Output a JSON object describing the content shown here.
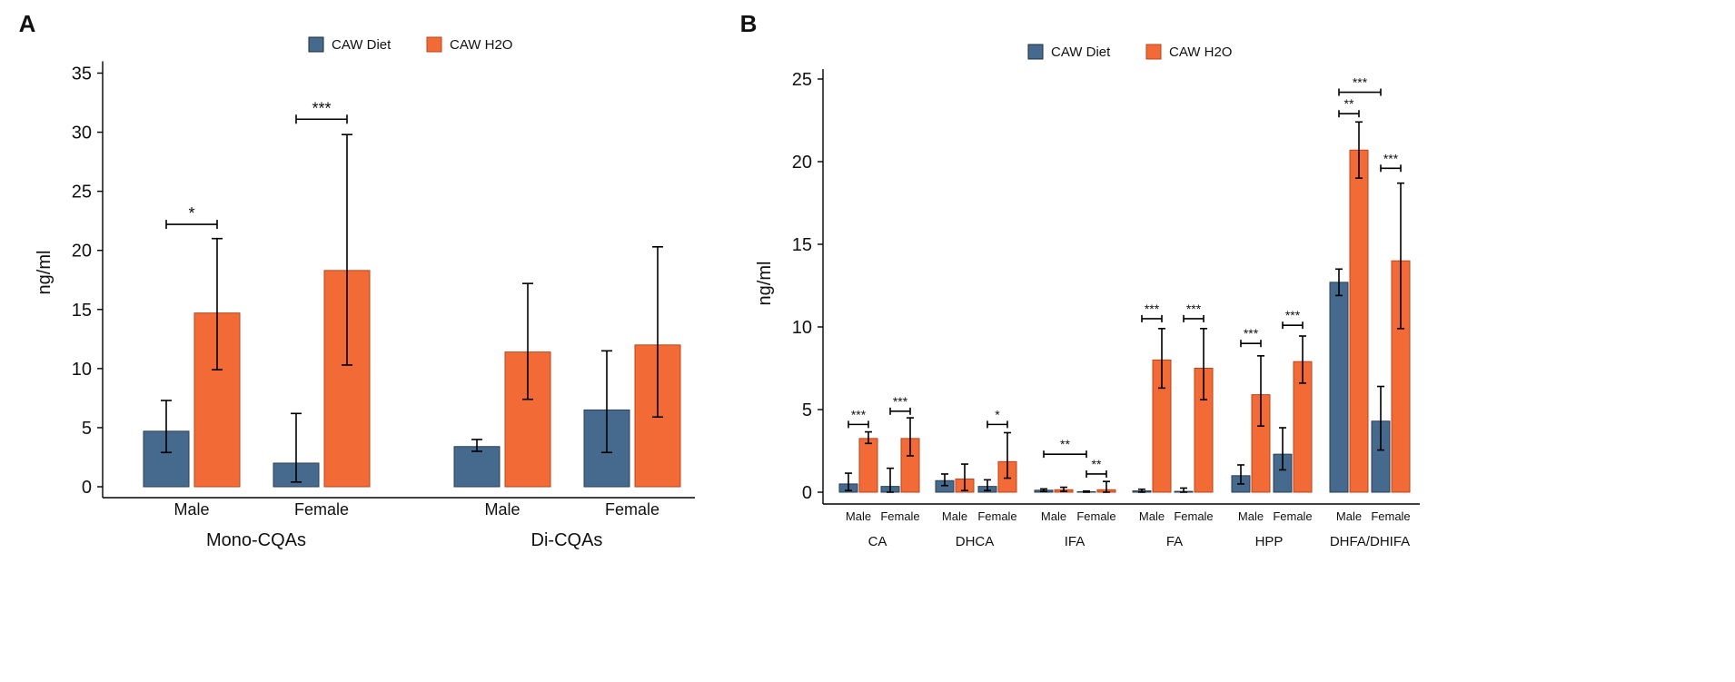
{
  "colors": {
    "diet": "#466a8d",
    "h2o": "#f26b36",
    "axis": "#000000"
  },
  "chart_data": [
    {
      "panel_label": "A",
      "type": "bar",
      "ylabel": "ng/ml",
      "ylim": [
        0,
        36
      ],
      "yticks": [
        0,
        5,
        10,
        15,
        20,
        25,
        30,
        35
      ],
      "legend": [
        "CAW Diet",
        "CAW H2O"
      ],
      "legend_position": "top-center",
      "groups": [
        {
          "label": "Mono-CQAs",
          "categories": [
            {
              "label": "Male",
              "diet": {
                "value": 4.7,
                "lo": 2.9,
                "hi": 7.3
              },
              "h2o": {
                "value": 14.7,
                "lo": 9.9,
                "hi": 21.0
              },
              "sig": {
                "text": "*",
                "level": 22.2
              }
            },
            {
              "label": "Female",
              "diet": {
                "value": 2.0,
                "lo": 0.4,
                "hi": 6.2
              },
              "h2o": {
                "value": 18.3,
                "lo": 10.3,
                "hi": 29.8
              },
              "sig": {
                "text": "***",
                "level": 31.1
              }
            }
          ]
        },
        {
          "label": "Di-CQAs",
          "categories": [
            {
              "label": "Male",
              "diet": {
                "value": 3.4,
                "lo": 3.0,
                "hi": 4.0
              },
              "h2o": {
                "value": 11.4,
                "lo": 7.4,
                "hi": 17.2
              }
            },
            {
              "label": "Female",
              "diet": {
                "value": 6.5,
                "lo": 2.9,
                "hi": 11.5
              },
              "h2o": {
                "value": 12.0,
                "lo": 5.9,
                "hi": 20.3
              }
            }
          ]
        }
      ]
    },
    {
      "panel_label": "B",
      "type": "bar",
      "ylabel": "ng/ml",
      "ylim": [
        0,
        25.6
      ],
      "yticks": [
        0,
        5,
        10,
        15,
        20,
        25
      ],
      "legend": [
        "CAW Diet",
        "CAW H2O"
      ],
      "legend_position": "top-center",
      "groups": [
        {
          "label": "CA",
          "categories": [
            {
              "label": "Male",
              "diet": {
                "value": 0.5,
                "lo": 0.1,
                "hi": 1.15
              },
              "h2o": {
                "value": 3.25,
                "lo": 2.95,
                "hi": 3.65
              },
              "sig": {
                "text": "***",
                "level": 4.1
              }
            },
            {
              "label": "Female",
              "diet": {
                "value": 0.35,
                "lo": 0.0,
                "hi": 1.45
              },
              "h2o": {
                "value": 3.25,
                "lo": 2.2,
                "hi": 4.5
              },
              "sig": {
                "text": "***",
                "level": 4.9
              }
            }
          ]
        },
        {
          "label": "DHCA",
          "categories": [
            {
              "label": "Male",
              "diet": {
                "value": 0.7,
                "lo": 0.4,
                "hi": 1.1
              },
              "h2o": {
                "value": 0.8,
                "lo": 0.1,
                "hi": 1.7
              }
            },
            {
              "label": "Female",
              "diet": {
                "value": 0.35,
                "lo": 0.1,
                "hi": 0.75
              },
              "h2o": {
                "value": 1.85,
                "lo": 0.85,
                "hi": 3.6
              },
              "sig": {
                "text": "*",
                "level": 4.1
              }
            }
          ]
        },
        {
          "label": "IFA",
          "categories": [
            {
              "label": "Male",
              "diet": {
                "value": 0.12,
                "lo": 0.05,
                "hi": 0.2
              },
              "h2o": {
                "value": 0.15,
                "lo": 0.05,
                "hi": 0.3
              }
            },
            {
              "label": "Female",
              "diet": {
                "value": 0.03,
                "lo": 0.0,
                "hi": 0.07
              },
              "h2o": {
                "value": 0.15,
                "lo": 0.0,
                "hi": 0.65
              },
              "sig": {
                "text": "**",
                "level": 1.1
              }
            }
          ],
          "span_sig": {
            "text": "**",
            "level": 2.3,
            "from": "Male",
            "to": "Female"
          }
        },
        {
          "label": "FA",
          "categories": [
            {
              "label": "Male",
              "diet": {
                "value": 0.08,
                "lo": 0.0,
                "hi": 0.18
              },
              "h2o": {
                "value": 8.0,
                "lo": 6.3,
                "hi": 9.9
              },
              "sig": {
                "text": "***",
                "level": 10.5
              }
            },
            {
              "label": "Female",
              "diet": {
                "value": 0.05,
                "lo": 0.0,
                "hi": 0.25
              },
              "h2o": {
                "value": 7.5,
                "lo": 5.6,
                "hi": 9.9
              },
              "sig": {
                "text": "***",
                "level": 10.5
              }
            }
          ]
        },
        {
          "label": "HPP",
          "categories": [
            {
              "label": "Male",
              "diet": {
                "value": 1.0,
                "lo": 0.5,
                "hi": 1.65
              },
              "h2o": {
                "value": 5.9,
                "lo": 4.0,
                "hi": 8.25
              },
              "sig": {
                "text": "***",
                "level": 9.0
              }
            },
            {
              "label": "Female",
              "diet": {
                "value": 2.3,
                "lo": 1.35,
                "hi": 3.9
              },
              "h2o": {
                "value": 7.9,
                "lo": 6.6,
                "hi": 9.45
              },
              "sig": {
                "text": "***",
                "level": 10.1
              }
            }
          ]
        },
        {
          "label": "DHFA/DHIFA",
          "categories": [
            {
              "label": "Male",
              "diet": {
                "value": 12.7,
                "lo": 11.9,
                "hi": 13.5
              },
              "h2o": {
                "value": 20.7,
                "lo": 19.0,
                "hi": 22.4
              },
              "sig": {
                "text": "**",
                "level": 22.9
              }
            },
            {
              "label": "Female",
              "diet": {
                "value": 4.3,
                "lo": 2.55,
                "hi": 6.4
              },
              "h2o": {
                "value": 14.0,
                "lo": 9.9,
                "hi": 18.7
              },
              "sig": {
                "text": "***",
                "level": 19.6
              }
            }
          ],
          "span_sig": {
            "text": "***",
            "level": 24.2,
            "from": "Male-diet",
            "to": "Female-diet"
          }
        }
      ]
    }
  ]
}
